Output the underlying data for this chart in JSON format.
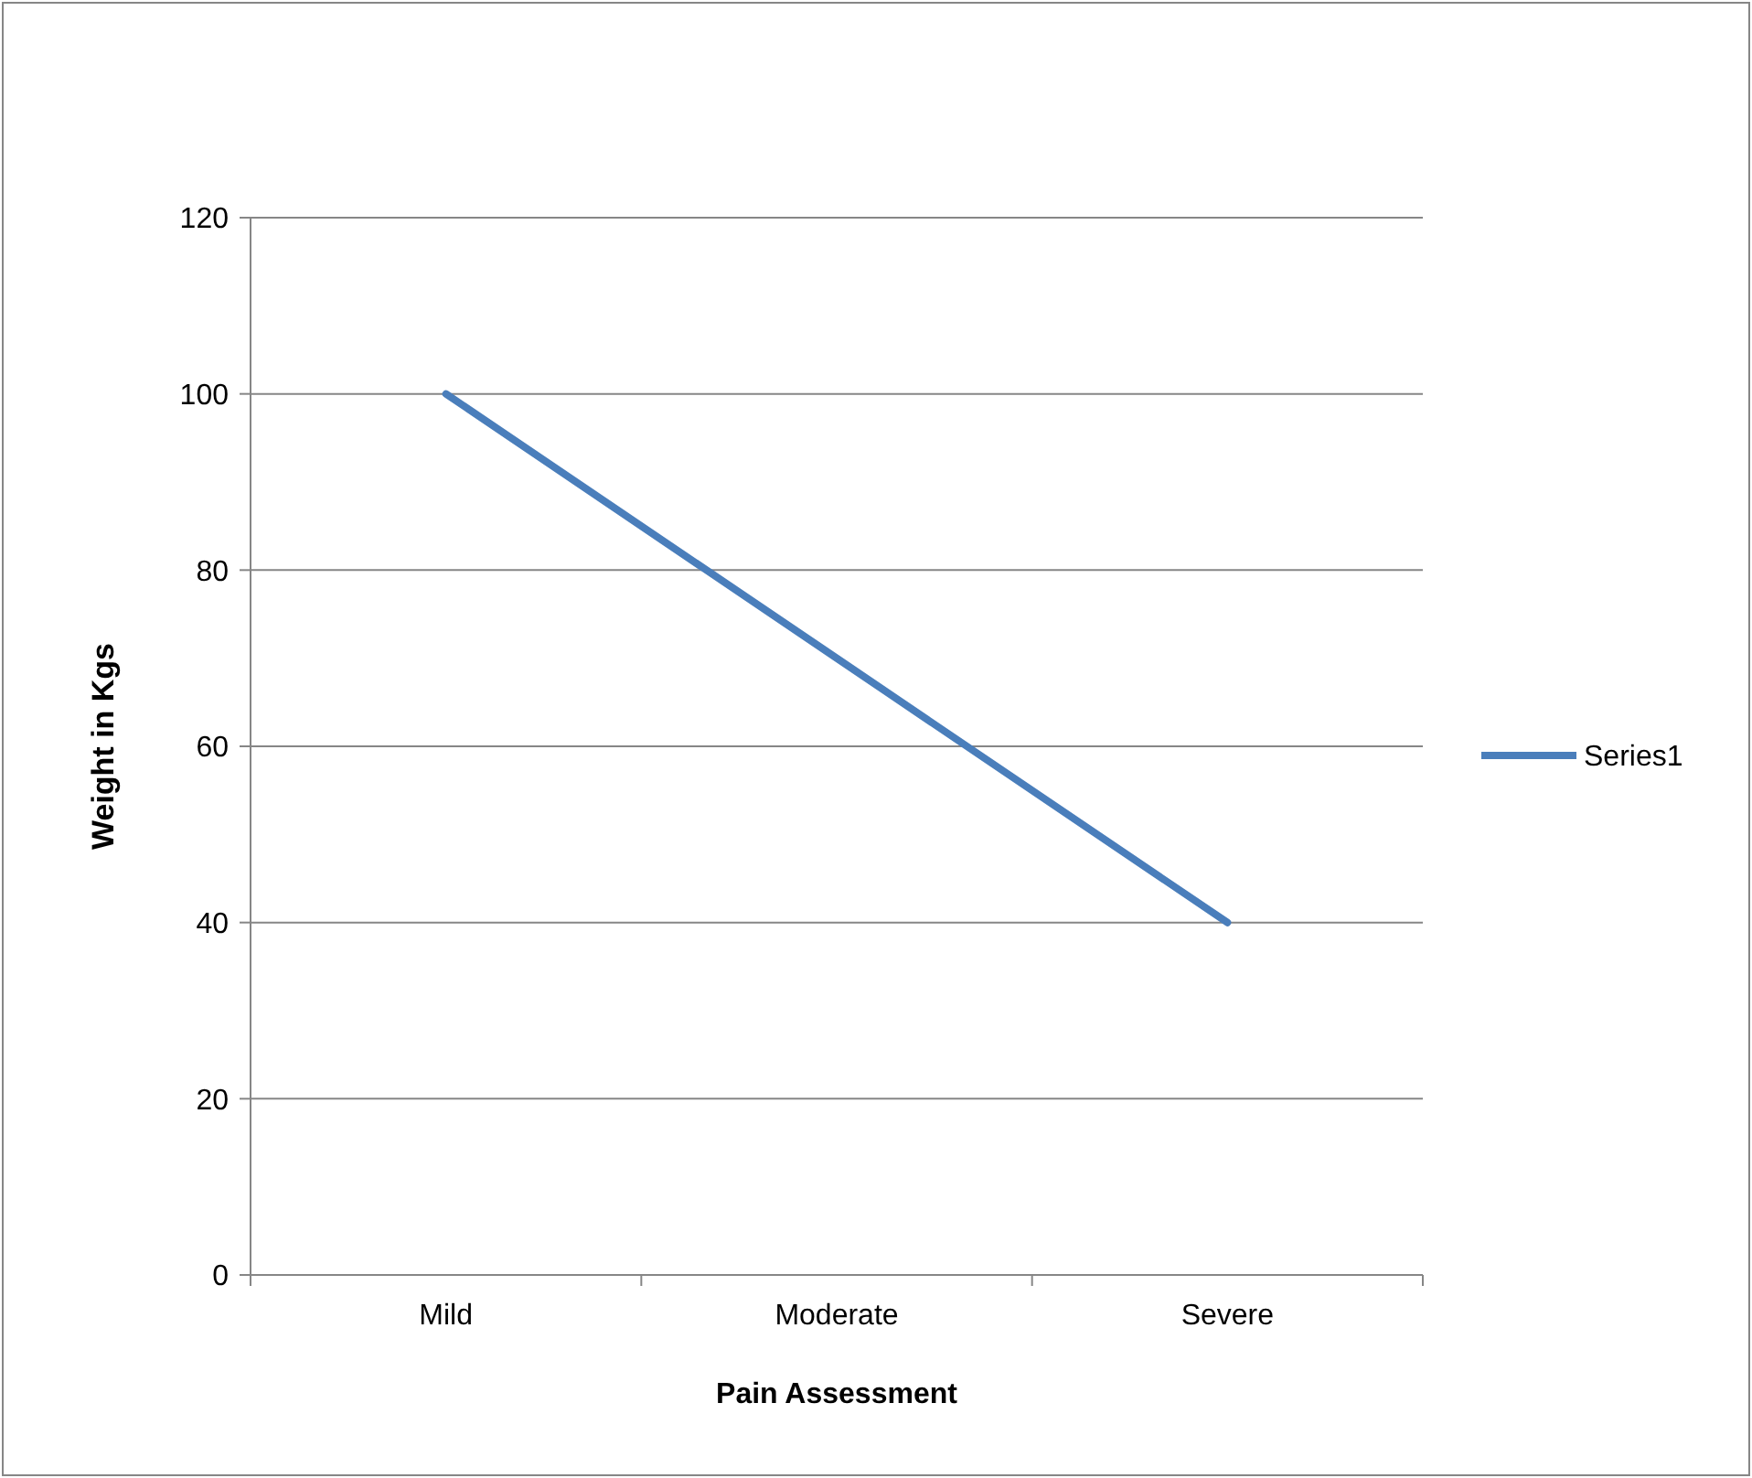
{
  "chart_data": {
    "type": "line",
    "xlabel": "Pain Assessment",
    "ylabel": "Weight in Kgs",
    "categories": [
      "Mild",
      "Moderate",
      "Severe"
    ],
    "series": [
      {
        "name": "Series1",
        "color": "#4a7ebb",
        "values": [
          100,
          70,
          40
        ]
      }
    ],
    "ylim": [
      0,
      120
    ],
    "yticks": [
      0,
      20,
      40,
      60,
      80,
      100,
      120
    ],
    "grid": "y",
    "legend": "right",
    "marker": "none",
    "line_style": "solid"
  }
}
